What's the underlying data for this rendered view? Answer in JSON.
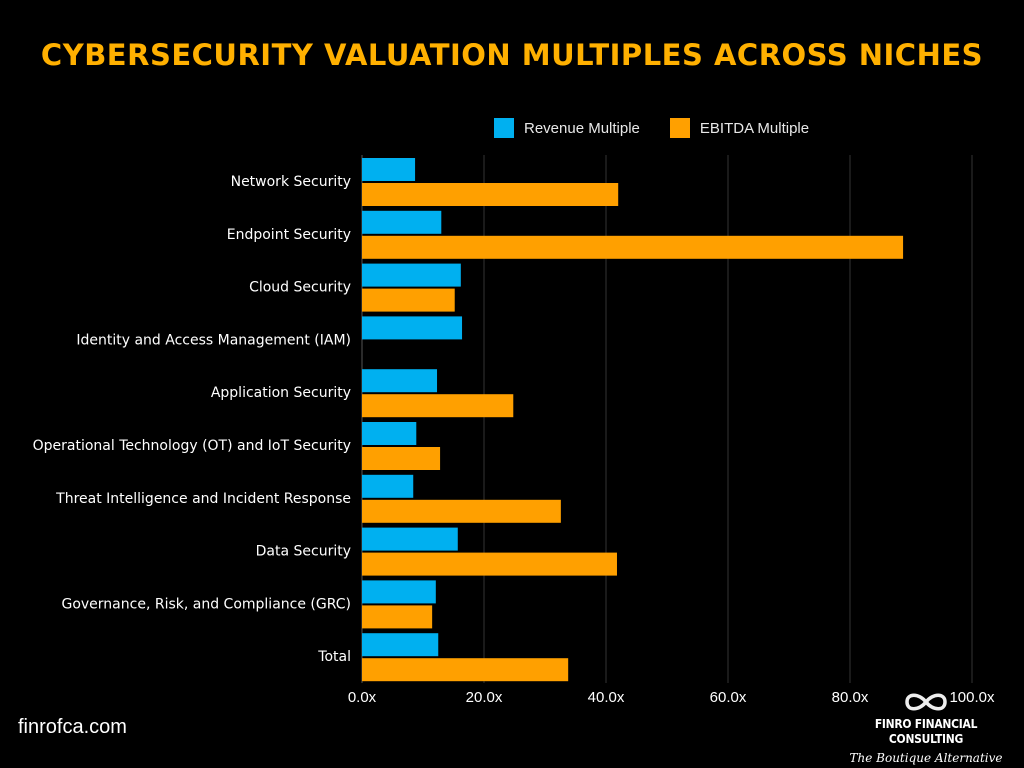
{
  "chart_data": {
    "type": "bar",
    "orientation": "horizontal",
    "title": "CYBERSECURITY VALUATION MULTIPLES ACROSS NICHES",
    "categories": [
      "Network Security",
      "Endpoint Security",
      "Cloud Security",
      "Identity and Access Management (IAM)",
      "Application Security",
      "Operational Technology (OT) and IoT Security",
      "Threat Intelligence and Incident Response",
      "Data Security",
      "Governance, Risk, and Compliance (GRC)",
      "Total"
    ],
    "series": [
      {
        "name": "Revenue Multiple",
        "color": "#00B0F0",
        "values": [
          8.7,
          13.0,
          16.2,
          16.4,
          12.3,
          8.9,
          8.4,
          15.7,
          12.1,
          12.5
        ]
      },
      {
        "name": "EBITDA Multiple",
        "color": "#FFA000",
        "values": [
          42.0,
          88.7,
          15.2,
          null,
          24.8,
          12.8,
          32.6,
          41.8,
          11.5,
          33.8
        ]
      }
    ],
    "xlim": [
      0,
      100
    ],
    "xticks": [
      "0.0x",
      "20.0x",
      "40.0x",
      "60.0x",
      "80.0x",
      "100.0x"
    ],
    "grid": true,
    "legend_position": "top-right"
  },
  "footer": {
    "site": "finrofca.com",
    "brand": "FINRO FINANCIAL CONSULTING",
    "tagline": "The Boutique Alternative",
    "logo_icon": "infinity-icon"
  }
}
